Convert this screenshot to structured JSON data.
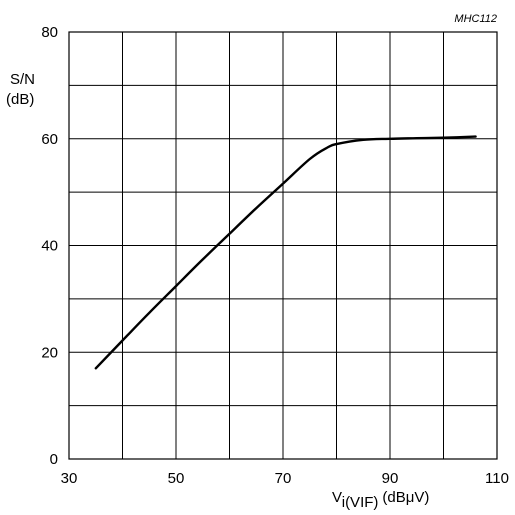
{
  "chart_data": {
    "type": "line",
    "figure_code": "MHC112",
    "ylabel_line1": "S/N",
    "ylabel_line2": "(dB)",
    "xlabel_main": "V",
    "xlabel_sub": "i(VIF)",
    "xlabel_unit": "(dBμV)",
    "xlim": [
      30,
      110
    ],
    "ylim": [
      0,
      80
    ],
    "x_ticks": [
      30,
      50,
      70,
      90,
      110
    ],
    "y_ticks": [
      0,
      20,
      40,
      60,
      80
    ],
    "x_grid_step": 10,
    "y_grid_step": 10,
    "grid": true,
    "series": [
      {
        "x": [
          35,
          40,
          45,
          50,
          55,
          60,
          65,
          70,
          75,
          78,
          80,
          85,
          90,
          95,
          100,
          106
        ],
        "values": [
          17,
          22.2,
          27.4,
          32.4,
          37.4,
          42.2,
          47,
          51.6,
          56.2,
          58.2,
          59,
          59.8,
          60,
          60.1,
          60.2,
          60.4
        ]
      }
    ]
  }
}
